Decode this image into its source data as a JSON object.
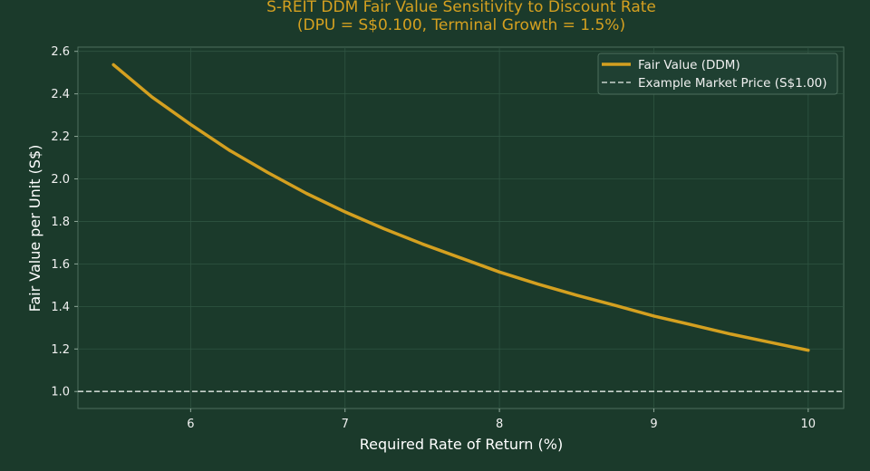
{
  "chart_data": {
    "type": "line",
    "title": "S-REIT DDM Fair Value Sensitivity to Discount Rate",
    "subtitle": "(DPU = S$0.100, Terminal Growth = 1.5%)",
    "xlabel": "Required Rate of Return (%)",
    "ylabel": "Fair Value per Unit (S$)",
    "xlim": [
      5.27,
      10.23
    ],
    "ylim": [
      0.92,
      2.62
    ],
    "xticks": [
      6,
      7,
      8,
      9,
      10
    ],
    "yticks": [
      1.0,
      1.2,
      1.4,
      1.6,
      1.8,
      2.0,
      2.2,
      2.4,
      2.6
    ],
    "grid": true,
    "legend_position": "top-right",
    "series": [
      {
        "name": "Fair Value (DDM)",
        "color": "#d4a020",
        "style": "solid",
        "x": [
          5.5,
          5.75,
          6.0,
          6.25,
          6.5,
          6.75,
          7.0,
          7.25,
          7.5,
          7.75,
          8.0,
          8.25,
          8.5,
          8.75,
          9.0,
          9.25,
          9.5,
          9.75,
          10.0
        ],
        "y": [
          2.537,
          2.385,
          2.256,
          2.135,
          2.03,
          1.932,
          1.845,
          1.766,
          1.694,
          1.628,
          1.562,
          1.505,
          1.453,
          1.405,
          1.355,
          1.313,
          1.27,
          1.232,
          1.194
        ]
      },
      {
        "name": "Example Market Price (S$1.00)",
        "color": "#c8d2cc",
        "style": "dashed",
        "y_constant": 1.0
      }
    ]
  }
}
